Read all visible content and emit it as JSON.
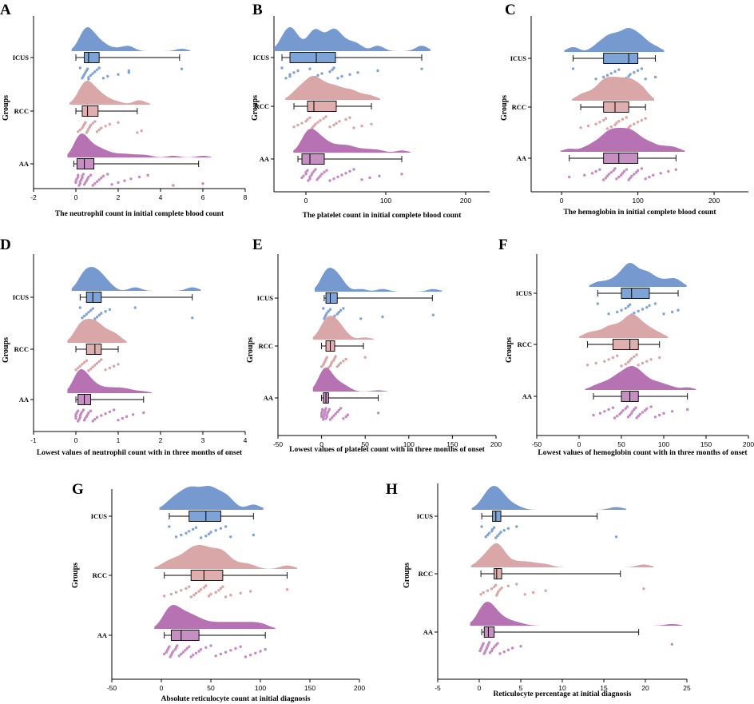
{
  "colors": {
    "ICUS": {
      "fill": "#6f95cc",
      "box": "#7ea3d6",
      "dot": "#7fa3d4"
    },
    "RCC": {
      "fill": "#d7a2a2",
      "box": "#dfaeae",
      "dot": "#d9a5a5"
    },
    "AA": {
      "fill": "#b36ab0",
      "box": "#c58fc1",
      "dot": "#c58ac0"
    }
  },
  "chart_data": [
    {
      "id": "A",
      "letter": "A",
      "type": "raincloud",
      "title": "",
      "xlabel": "The neutrophil count in initial complete blood count",
      "ylabel": "Groups",
      "xlim": [
        -2,
        8
      ],
      "xticks": [
        -2,
        0,
        2,
        4,
        6,
        8
      ],
      "categories": [
        "ICUS",
        "RCC",
        "AA"
      ],
      "series": [
        {
          "name": "ICUS",
          "box": {
            "whisker_low": 0.0,
            "q1": 0.4,
            "median": 0.6,
            "q3": 1.1,
            "whisker_high": 4.9
          },
          "points": [
            0.2,
            0.3,
            0.35,
            0.4,
            0.45,
            0.5,
            0.55,
            0.6,
            0.6,
            0.7,
            0.8,
            0.9,
            1.0,
            1.1,
            1.3,
            1.5,
            2.0,
            2.5,
            2.5,
            5.0
          ]
        },
        {
          "name": "RCC",
          "box": {
            "whisker_low": 0.0,
            "q1": 0.3,
            "median": 0.55,
            "q3": 1.05,
            "whisker_high": 2.9
          },
          "points": [
            0.1,
            0.2,
            0.3,
            0.35,
            0.4,
            0.45,
            0.5,
            0.55,
            0.6,
            0.65,
            0.7,
            0.8,
            0.9,
            1.0,
            1.1,
            1.2,
            1.4,
            1.6,
            2.0,
            2.9,
            3.1
          ]
        },
        {
          "name": "AA",
          "box": {
            "whisker_low": -0.1,
            "q1": 0.05,
            "median": 0.4,
            "q3": 0.85,
            "whisker_high": 5.8
          },
          "points": [
            0,
            0,
            0.05,
            0.1,
            0.1,
            0.15,
            0.2,
            0.2,
            0.25,
            0.3,
            0.3,
            0.35,
            0.4,
            0.45,
            0.5,
            0.55,
            0.6,
            0.7,
            0.8,
            0.9,
            1.0,
            1.1,
            1.2,
            1.3,
            1.5,
            1.7,
            2.0,
            2.3,
            2.6,
            3.0,
            3.4,
            4.6,
            6.0
          ]
        }
      ]
    },
    {
      "id": "B",
      "letter": "B",
      "type": "raincloud",
      "title": "",
      "xlabel": "The platelet count in initial complete blood count",
      "ylabel": "Groups",
      "xlim": [
        -40,
        230
      ],
      "xticks": [
        0,
        100,
        200
      ],
      "categories": [
        "ICUS",
        "RCC",
        "AA"
      ],
      "series": [
        {
          "name": "ICUS",
          "box": {
            "whisker_low": -30,
            "q1": -20,
            "median": 13,
            "q3": 37,
            "whisker_high": 145
          },
          "points": [
            -30,
            -25,
            -20,
            -20,
            -15,
            -10,
            5,
            8,
            12,
            15,
            20,
            30,
            33,
            35,
            40,
            45,
            55,
            65,
            90,
            145
          ]
        },
        {
          "name": "RCC",
          "box": {
            "whisker_low": -15,
            "q1": 2,
            "median": 10,
            "q3": 38,
            "whisker_high": 82
          },
          "points": [
            -15,
            -10,
            -5,
            0,
            2,
            5,
            8,
            10,
            12,
            15,
            18,
            22,
            25,
            30,
            35,
            38,
            42,
            50,
            55,
            60,
            70,
            82
          ]
        },
        {
          "name": "AA",
          "box": {
            "whisker_low": -10,
            "q1": -5,
            "median": 5,
            "q3": 23,
            "whisker_high": 120
          },
          "points": [
            -5,
            -3,
            0,
            0,
            2,
            3,
            5,
            5,
            7,
            8,
            10,
            12,
            14,
            16,
            18,
            20,
            23,
            26,
            30,
            35,
            40,
            45,
            50,
            55,
            60,
            70,
            80,
            92,
            120
          ]
        }
      ]
    },
    {
      "id": "C",
      "letter": "C",
      "type": "raincloud",
      "title": "",
      "xlabel": "The hemoglobin in initial complete blood count",
      "ylabel": "Groups",
      "xlim": [
        -40,
        245
      ],
      "xticks": [
        0,
        100,
        200
      ],
      "categories": [
        "ICUS",
        "RCC",
        "AA"
      ],
      "series": [
        {
          "name": "ICUS",
          "box": {
            "whisker_low": 15,
            "q1": 55,
            "median": 88,
            "q3": 100,
            "whisker_high": 123
          },
          "points": [
            15,
            45,
            55,
            60,
            65,
            70,
            75,
            80,
            85,
            88,
            90,
            95,
            100,
            105,
            110,
            123
          ]
        },
        {
          "name": "RCC",
          "box": {
            "whisker_low": 25,
            "q1": 55,
            "median": 70,
            "q3": 88,
            "whisker_high": 110
          },
          "points": [
            25,
            35,
            45,
            50,
            55,
            58,
            60,
            65,
            70,
            72,
            75,
            80,
            85,
            88,
            90,
            95,
            100,
            105,
            110
          ]
        },
        {
          "name": "AA",
          "box": {
            "whisker_low": 10,
            "q1": 55,
            "median": 75,
            "q3": 100,
            "whisker_high": 150
          },
          "points": [
            10,
            30,
            40,
            45,
            50,
            55,
            58,
            60,
            62,
            65,
            68,
            70,
            72,
            75,
            78,
            80,
            82,
            85,
            88,
            90,
            92,
            95,
            98,
            100,
            105,
            110,
            115,
            120,
            130,
            140,
            150
          ]
        }
      ]
    },
    {
      "id": "D",
      "letter": "D",
      "type": "raincloud",
      "title": "",
      "xlabel": "Lowest values of neutrophil count with in three months of onset",
      "ylabel": "Groups",
      "xlim": [
        -1,
        4
      ],
      "xticks": [
        -1,
        0,
        1,
        2,
        3,
        4
      ],
      "categories": [
        "ICUS",
        "RCC",
        "AA"
      ],
      "series": [
        {
          "name": "ICUS",
          "box": {
            "whisker_low": 0.1,
            "q1": 0.25,
            "median": 0.4,
            "q3": 0.6,
            "whisker_high": 2.75
          },
          "points": [
            0.1,
            0.15,
            0.2,
            0.25,
            0.3,
            0.35,
            0.4,
            0.45,
            0.5,
            0.55,
            0.6,
            0.7,
            0.8,
            1.4,
            2.75
          ]
        },
        {
          "name": "RCC",
          "box": {
            "whisker_low": 0.0,
            "q1": 0.25,
            "median": 0.45,
            "q3": 0.6,
            "whisker_high": 1.0
          },
          "points": [
            0,
            0.05,
            0.1,
            0.15,
            0.2,
            0.25,
            0.3,
            0.35,
            0.4,
            0.45,
            0.5,
            0.55,
            0.6,
            0.7,
            0.8,
            0.9,
            1.0
          ]
        },
        {
          "name": "AA",
          "box": {
            "whisker_low": 0.0,
            "q1": 0.05,
            "median": 0.2,
            "q3": 0.35,
            "whisker_high": 1.6
          },
          "points": [
            0,
            0,
            0,
            0.02,
            0.05,
            0.05,
            0.08,
            0.1,
            0.1,
            0.12,
            0.15,
            0.18,
            0.2,
            0.22,
            0.25,
            0.28,
            0.3,
            0.35,
            0.4,
            0.45,
            0.5,
            0.6,
            0.7,
            0.8,
            0.9,
            1.0,
            1.1,
            1.2,
            1.35,
            1.6
          ]
        }
      ]
    },
    {
      "id": "E",
      "letter": "E",
      "type": "raincloud",
      "title": "",
      "xlabel": "Lowest values of platelet count with in three months of onset",
      "ylabel": "Groups",
      "xlim": [
        -50,
        200
      ],
      "xticks": [
        -50,
        0,
        50,
        100,
        150,
        200
      ],
      "categories": [
        "ICUS",
        "RCC",
        "AA"
      ],
      "series": [
        {
          "name": "ICUS",
          "box": {
            "whisker_low": 3,
            "q1": 5,
            "median": 10,
            "q3": 18,
            "whisker_high": 127
          },
          "points": [
            2,
            3,
            4,
            5,
            6,
            8,
            10,
            12,
            14,
            15,
            18,
            20,
            22,
            25,
            45,
            70,
            128
          ]
        },
        {
          "name": "RCC",
          "box": {
            "whisker_low": 0,
            "q1": 5,
            "median": 10,
            "q3": 15,
            "whisker_high": 48
          },
          "points": [
            0,
            2,
            3,
            4,
            5,
            6,
            8,
            10,
            11,
            12,
            14,
            15,
            16,
            18,
            20,
            22,
            25,
            28,
            50
          ]
        },
        {
          "name": "AA",
          "box": {
            "whisker_low": 0,
            "q1": 2,
            "median": 5,
            "q3": 8,
            "whisker_high": 65
          },
          "points": [
            0,
            0,
            0,
            1,
            1,
            2,
            2,
            3,
            3,
            4,
            4,
            5,
            5,
            6,
            6,
            7,
            8,
            9,
            10,
            12,
            14,
            16,
            18,
            20,
            22,
            25,
            28,
            30,
            65
          ]
        }
      ]
    },
    {
      "id": "F",
      "letter": "F",
      "type": "raincloud",
      "title": "",
      "xlabel": "Lowest values of hemoglobin count with in three months of onset",
      "ylabel": "Groups",
      "xlim": [
        -50,
        200
      ],
      "xticks": [
        -50,
        0,
        50,
        100,
        150,
        200
      ],
      "categories": [
        "ICUS",
        "RCC",
        "AA"
      ],
      "series": [
        {
          "name": "ICUS",
          "box": {
            "whisker_low": 22,
            "q1": 50,
            "median": 62,
            "q3": 83,
            "whisker_high": 117
          },
          "points": [
            22,
            35,
            45,
            50,
            55,
            58,
            60,
            62,
            65,
            70,
            75,
            80,
            83,
            90,
            100,
            110,
            117
          ]
        },
        {
          "name": "RCC",
          "box": {
            "whisker_low": 10,
            "q1": 40,
            "median": 60,
            "q3": 70,
            "whisker_high": 95
          },
          "points": [
            10,
            20,
            30,
            35,
            40,
            45,
            50,
            55,
            58,
            60,
            62,
            65,
            68,
            70,
            75,
            80,
            85,
            95
          ]
        },
        {
          "name": "AA",
          "box": {
            "whisker_low": 17,
            "q1": 50,
            "median": 60,
            "q3": 70,
            "whisker_high": 128
          },
          "points": [
            17,
            25,
            30,
            35,
            40,
            42,
            45,
            48,
            50,
            52,
            55,
            57,
            58,
            60,
            62,
            63,
            65,
            67,
            68,
            70,
            72,
            75,
            78,
            80,
            85,
            90,
            95,
            100,
            110,
            128
          ]
        }
      ]
    },
    {
      "id": "G",
      "letter": "G",
      "type": "raincloud",
      "title": "",
      "xlabel": "Absolute reticulocyte count at initial diagnosis",
      "ylabel": "Groups",
      "xlim": [
        -50,
        200
      ],
      "xticks": [
        -50,
        0,
        50,
        100,
        150,
        200
      ],
      "categories": [
        "ICUS",
        "RCC",
        "AA"
      ],
      "series": [
        {
          "name": "ICUS",
          "box": {
            "whisker_low": 8,
            "q1": 28,
            "median": 45,
            "q3": 60,
            "whisker_high": 93
          },
          "points": [
            8,
            15,
            20,
            25,
            28,
            32,
            35,
            40,
            45,
            48,
            50,
            55,
            60,
            65,
            70,
            93
          ]
        },
        {
          "name": "RCC",
          "box": {
            "whisker_low": 3,
            "q1": 30,
            "median": 43,
            "q3": 62,
            "whisker_high": 127
          },
          "points": [
            3,
            10,
            15,
            20,
            25,
            28,
            30,
            33,
            35,
            38,
            40,
            43,
            45,
            48,
            50,
            55,
            58,
            60,
            62,
            65,
            70,
            80,
            90,
            127
          ]
        },
        {
          "name": "AA",
          "box": {
            "whisker_low": 3,
            "q1": 10,
            "median": 20,
            "q3": 38,
            "whisker_high": 105
          },
          "points": [
            3,
            5,
            6,
            7,
            8,
            9,
            10,
            11,
            12,
            14,
            15,
            16,
            18,
            20,
            22,
            24,
            26,
            28,
            30,
            32,
            35,
            38,
            40,
            45,
            50,
            55,
            60,
            65,
            70,
            75,
            80,
            85,
            90,
            95,
            100,
            105
          ]
        }
      ]
    },
    {
      "id": "H",
      "letter": "H",
      "type": "raincloud",
      "title": "",
      "xlabel": "Reticulocyte percentage at initial diagnosis",
      "ylabel": "Groups",
      "xlim": [
        -5,
        25
      ],
      "xticks": [
        -5,
        0,
        5,
        10,
        15,
        20,
        25
      ],
      "categories": [
        "ICUS",
        "RCC",
        "AA"
      ],
      "series": [
        {
          "name": "ICUS",
          "box": {
            "whisker_low": 0.3,
            "q1": 1.6,
            "median": 2.0,
            "q3": 2.6,
            "whisker_high": 14.2
          },
          "points": [
            0.3,
            0.8,
            1.0,
            1.2,
            1.5,
            1.6,
            1.8,
            2.0,
            2.2,
            2.4,
            2.6,
            3.0,
            3.5,
            4.5,
            16.5
          ]
        },
        {
          "name": "RCC",
          "box": {
            "whisker_low": 0.2,
            "q1": 1.8,
            "median": 2.1,
            "q3": 2.7,
            "whisker_high": 17.0
          },
          "points": [
            0.2,
            0.5,
            1.0,
            1.5,
            1.8,
            2.0,
            2.1,
            2.2,
            2.3,
            2.5,
            2.7,
            3.5,
            4.5,
            5.5,
            6.5,
            8.0,
            19.8
          ]
        },
        {
          "name": "AA",
          "box": {
            "whisker_low": 0.3,
            "q1": 0.6,
            "median": 1.1,
            "q3": 1.8,
            "whisker_high": 19.2
          },
          "points": [
            0.1,
            0.2,
            0.3,
            0.4,
            0.5,
            0.6,
            0.7,
            0.8,
            0.9,
            1.0,
            1.1,
            1.2,
            1.3,
            1.5,
            1.6,
            1.8,
            2.0,
            2.2,
            2.5,
            3.0,
            3.5,
            4.0,
            5.0,
            23.2
          ]
        }
      ]
    }
  ]
}
